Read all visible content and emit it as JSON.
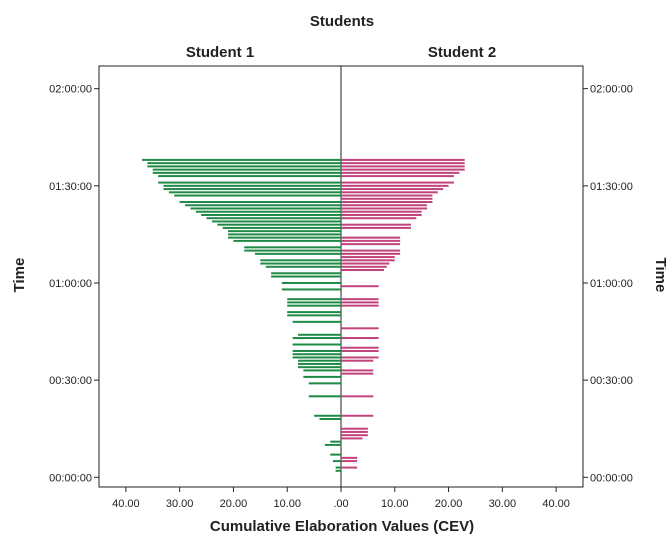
{
  "chart_data": {
    "type": "bar",
    "subtype": "population-pyramid",
    "title": "Students",
    "panels": [
      "Student 1",
      "Student 2"
    ],
    "xlabel": "Cumulative Elaboration Values (CEV)",
    "ylabel": "Time",
    "ylabel_right": "Time",
    "xlim": [
      0,
      45
    ],
    "x_ticks": [
      40,
      30,
      20,
      10,
      0,
      10,
      20,
      30,
      40
    ],
    "x_tick_labels": [
      "40.00",
      "30.00",
      "20.00",
      "10.00",
      ".00",
      "10.00",
      "20.00",
      "30.00",
      "40.00"
    ],
    "ylim_minutes": [
      -3,
      127
    ],
    "y_ticks": [
      "00:00:00",
      "00:30:00",
      "01:00:00",
      "01:30:00",
      "02:00:00"
    ],
    "grid": false,
    "colors": {
      "Student 1": "#1f8a45",
      "Student 2": "#c2437c",
      "axis": "#222222"
    },
    "series": [
      {
        "name": "Student 1",
        "points": [
          {
            "time": "00:02:00",
            "value": 1.0
          },
          {
            "time": "00:03:00",
            "value": 1.0
          },
          {
            "time": "00:05:00",
            "value": 1.5
          },
          {
            "time": "00:07:00",
            "value": 2.0
          },
          {
            "time": "00:10:00",
            "value": 3.0
          },
          {
            "time": "00:11:00",
            "value": 2.0
          },
          {
            "time": "00:18:00",
            "value": 4.0
          },
          {
            "time": "00:19:00",
            "value": 5.0
          },
          {
            "time": "00:25:00",
            "value": 6.0
          },
          {
            "time": "00:29:00",
            "value": 6.0
          },
          {
            "time": "00:31:00",
            "value": 7.0
          },
          {
            "time": "00:33:00",
            "value": 7.0
          },
          {
            "time": "00:34:00",
            "value": 8.0
          },
          {
            "time": "00:35:00",
            "value": 8.0
          },
          {
            "time": "00:36:00",
            "value": 8.0
          },
          {
            "time": "00:37:00",
            "value": 9.0
          },
          {
            "time": "00:38:00",
            "value": 9.0
          },
          {
            "time": "00:39:00",
            "value": 9.0
          },
          {
            "time": "00:41:00",
            "value": 9.0
          },
          {
            "time": "00:43:00",
            "value": 9.0
          },
          {
            "time": "00:44:00",
            "value": 8.0
          },
          {
            "time": "00:48:00",
            "value": 9.0
          },
          {
            "time": "00:50:00",
            "value": 10.0
          },
          {
            "time": "00:51:00",
            "value": 10.0
          },
          {
            "time": "00:53:00",
            "value": 10.0
          },
          {
            "time": "00:54:00",
            "value": 10.0
          },
          {
            "time": "00:55:00",
            "value": 10.0
          },
          {
            "time": "00:58:00",
            "value": 11.0
          },
          {
            "time": "01:00:00",
            "value": 11.0
          },
          {
            "time": "01:02:00",
            "value": 13.0
          },
          {
            "time": "01:03:00",
            "value": 13.0
          },
          {
            "time": "01:05:00",
            "value": 14.0
          },
          {
            "time": "01:06:00",
            "value": 15.0
          },
          {
            "time": "01:07:00",
            "value": 15.0
          },
          {
            "time": "01:09:00",
            "value": 16.0
          },
          {
            "time": "01:10:00",
            "value": 18.0
          },
          {
            "time": "01:11:00",
            "value": 18.0
          },
          {
            "time": "01:13:00",
            "value": 20.0
          },
          {
            "time": "01:14:00",
            "value": 21.0
          },
          {
            "time": "01:15:00",
            "value": 21.0
          },
          {
            "time": "01:16:00",
            "value": 21.0
          },
          {
            "time": "01:17:00",
            "value": 22.0
          },
          {
            "time": "01:18:00",
            "value": 23.0
          },
          {
            "time": "01:19:00",
            "value": 24.0
          },
          {
            "time": "01:20:00",
            "value": 25.0
          },
          {
            "time": "01:21:00",
            "value": 26.0
          },
          {
            "time": "01:22:00",
            "value": 27.0
          },
          {
            "time": "01:23:00",
            "value": 28.0
          },
          {
            "time": "01:24:00",
            "value": 29.0
          },
          {
            "time": "01:25:00",
            "value": 30.0
          },
          {
            "time": "01:27:00",
            "value": 31.0
          },
          {
            "time": "01:28:00",
            "value": 32.0
          },
          {
            "time": "01:29:00",
            "value": 33.0
          },
          {
            "time": "01:30:00",
            "value": 33.0
          },
          {
            "time": "01:31:00",
            "value": 34.0
          },
          {
            "time": "01:33:00",
            "value": 34.0
          },
          {
            "time": "01:34:00",
            "value": 35.0
          },
          {
            "time": "01:35:00",
            "value": 35.0
          },
          {
            "time": "01:36:00",
            "value": 36.0
          },
          {
            "time": "01:37:00",
            "value": 36.0
          },
          {
            "time": "01:38:00",
            "value": 37.0
          }
        ]
      },
      {
        "name": "Student 2",
        "points": [
          {
            "time": "00:03:00",
            "value": 3.0
          },
          {
            "time": "00:05:00",
            "value": 3.0
          },
          {
            "time": "00:06:00",
            "value": 3.0
          },
          {
            "time": "00:12:00",
            "value": 4.0
          },
          {
            "time": "00:13:00",
            "value": 5.0
          },
          {
            "time": "00:14:00",
            "value": 5.0
          },
          {
            "time": "00:15:00",
            "value": 5.0
          },
          {
            "time": "00:19:00",
            "value": 6.0
          },
          {
            "time": "00:25:00",
            "value": 6.0
          },
          {
            "time": "00:32:00",
            "value": 6.0
          },
          {
            "time": "00:33:00",
            "value": 6.0
          },
          {
            "time": "00:36:00",
            "value": 6.0
          },
          {
            "time": "00:37:00",
            "value": 7.0
          },
          {
            "time": "00:39:00",
            "value": 7.0
          },
          {
            "time": "00:40:00",
            "value": 7.0
          },
          {
            "time": "00:43:00",
            "value": 7.0
          },
          {
            "time": "00:46:00",
            "value": 7.0
          },
          {
            "time": "00:53:00",
            "value": 7.0
          },
          {
            "time": "00:54:00",
            "value": 7.0
          },
          {
            "time": "00:55:00",
            "value": 7.0
          },
          {
            "time": "00:59:00",
            "value": 7.0
          },
          {
            "time": "01:04:00",
            "value": 8.0
          },
          {
            "time": "01:05:00",
            "value": 8.5
          },
          {
            "time": "01:06:00",
            "value": 9.0
          },
          {
            "time": "01:07:00",
            "value": 10.0
          },
          {
            "time": "01:08:00",
            "value": 10.0
          },
          {
            "time": "01:09:00",
            "value": 11.0
          },
          {
            "time": "01:10:00",
            "value": 11.0
          },
          {
            "time": "01:12:00",
            "value": 11.0
          },
          {
            "time": "01:13:00",
            "value": 11.0
          },
          {
            "time": "01:14:00",
            "value": 11.0
          },
          {
            "time": "01:17:00",
            "value": 13.0
          },
          {
            "time": "01:18:00",
            "value": 13.0
          },
          {
            "time": "01:20:00",
            "value": 14.0
          },
          {
            "time": "01:21:00",
            "value": 15.0
          },
          {
            "time": "01:22:00",
            "value": 15.0
          },
          {
            "time": "01:23:00",
            "value": 16.0
          },
          {
            "time": "01:24:00",
            "value": 16.0
          },
          {
            "time": "01:25:00",
            "value": 17.0
          },
          {
            "time": "01:26:00",
            "value": 17.0
          },
          {
            "time": "01:27:00",
            "value": 17.0
          },
          {
            "time": "01:28:00",
            "value": 18.0
          },
          {
            "time": "01:29:00",
            "value": 19.0
          },
          {
            "time": "01:30:00",
            "value": 20.0
          },
          {
            "time": "01:31:00",
            "value": 21.0
          },
          {
            "time": "01:33:00",
            "value": 21.0
          },
          {
            "time": "01:34:00",
            "value": 22.0
          },
          {
            "time": "01:35:00",
            "value": 23.0
          },
          {
            "time": "01:36:00",
            "value": 23.0
          },
          {
            "time": "01:37:00",
            "value": 23.0
          },
          {
            "time": "01:38:00",
            "value": 23.0
          }
        ]
      }
    ]
  }
}
